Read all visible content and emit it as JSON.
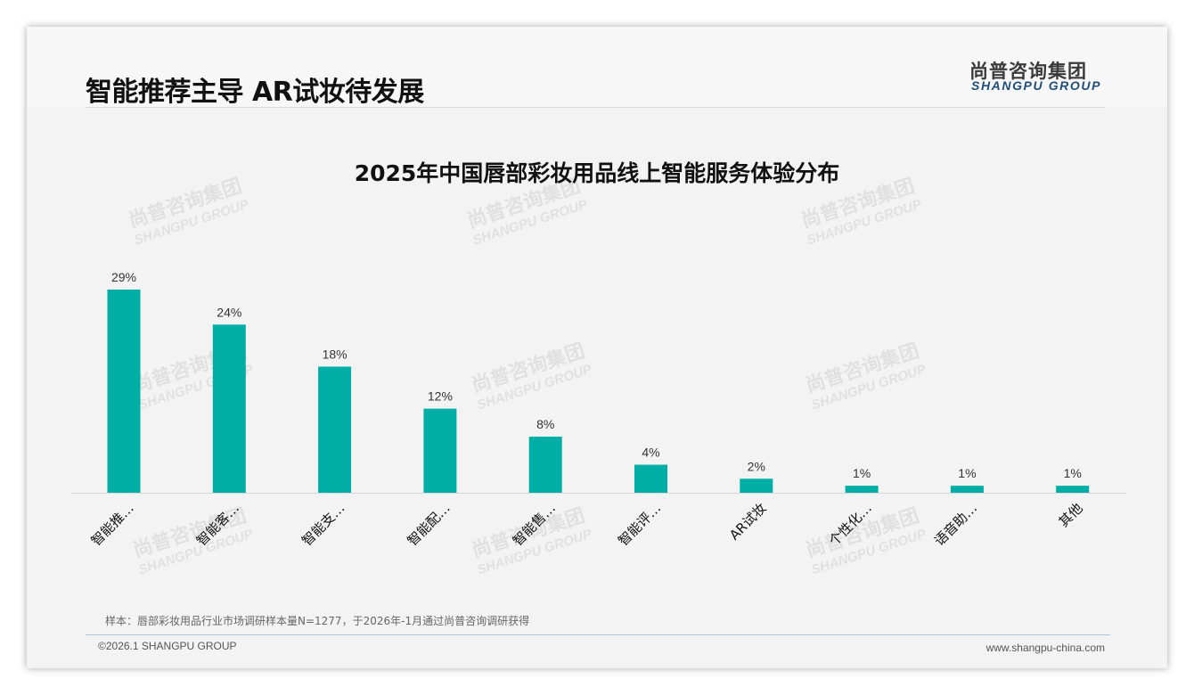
{
  "page": {
    "title": "智能推荐主导 AR试妆待发展",
    "logo_cn": "尚普咨询集团",
    "logo_en": "SHANGPU GROUP",
    "watermark_cn": "尚普咨询集团",
    "watermark_en": "SHANGPU GROUP",
    "note": "样本：唇部彩妆用品行业市场调研样本量N=1277，于2026年-1月通过尚普咨询调研获得",
    "copyright": "©2026.1 SHANGPU GROUP",
    "url": "www.shangpu-china.com",
    "bar_color": "#00aea5"
  },
  "chart_data": {
    "type": "bar",
    "title": "2025年中国唇部彩妆用品线上智能服务体验分布",
    "categories": [
      "智能推…",
      "智能客…",
      "智能支…",
      "智能配…",
      "智能售…",
      "智能评…",
      "AR试妆",
      "个性化…",
      "语音助…",
      "其他"
    ],
    "values": [
      29,
      24,
      18,
      12,
      8,
      4,
      2,
      1,
      1,
      1
    ],
    "data_labels": [
      "29%",
      "24%",
      "18%",
      "12%",
      "8%",
      "4%",
      "2%",
      "1%",
      "1%",
      "1%"
    ],
    "xlabel": "",
    "ylabel": "",
    "ylim": [
      0,
      30
    ],
    "grid": false,
    "legend": "none"
  }
}
